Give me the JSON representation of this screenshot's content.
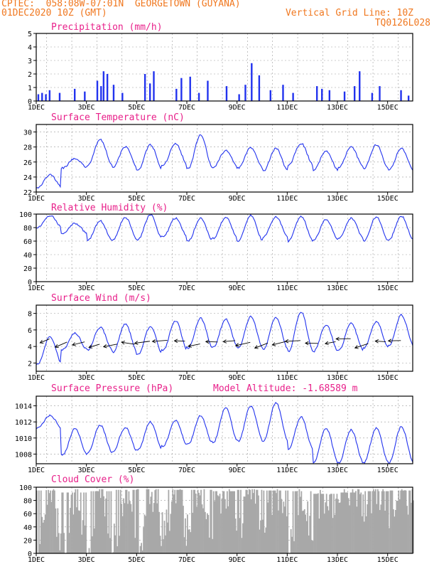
{
  "header": {
    "line1": "CPTEC:  058:08W-07:01N  GEORGETOWN (GUYANA)",
    "line2": "01DEC2020 10Z (GMT)",
    "grid_note": "Vertical Grid Line: 10Z",
    "run_code": "TQ0126L028"
  },
  "colors": {
    "header": "#f07820",
    "panel_title": "#e8208a",
    "series": "#2233ee",
    "cloud": "#a8a8a8",
    "frame": "#000000"
  },
  "x_axis": {
    "tick_labels": [
      "1DEC",
      "3DEC",
      "5DEC",
      "7DEC",
      "9DEC",
      "11DEC",
      "13DEC",
      "15DEC"
    ],
    "start_day": 1,
    "end_day": 16,
    "grid": "dashed vertical lines at 10Z each day"
  },
  "chart_data": [
    {
      "type": "bar",
      "title": "Precipitation (mm/h)",
      "ylim": [
        0,
        5
      ],
      "yticks": [
        "0",
        "1",
        "2",
        "3",
        "4",
        "5"
      ],
      "events": [
        {
          "day": 1.05,
          "value": 0.5
        },
        {
          "day": 1.2,
          "value": 0.6
        },
        {
          "day": 1.35,
          "value": 0.5
        },
        {
          "day": 1.5,
          "value": 0.8
        },
        {
          "day": 1.9,
          "value": 0.6
        },
        {
          "day": 2.5,
          "value": 0.9
        },
        {
          "day": 2.9,
          "value": 0.7
        },
        {
          "day": 3.4,
          "value": 1.5
        },
        {
          "day": 3.55,
          "value": 1.1
        },
        {
          "day": 3.65,
          "value": 2.2
        },
        {
          "day": 3.8,
          "value": 2.0
        },
        {
          "day": 4.05,
          "value": 1.2
        },
        {
          "day": 4.4,
          "value": 0.6
        },
        {
          "day": 5.3,
          "value": 2.0
        },
        {
          "day": 5.5,
          "value": 1.3
        },
        {
          "day": 5.65,
          "value": 2.2
        },
        {
          "day": 6.55,
          "value": 0.9
        },
        {
          "day": 6.75,
          "value": 1.7
        },
        {
          "day": 7.1,
          "value": 1.8
        },
        {
          "day": 7.45,
          "value": 0.6
        },
        {
          "day": 7.8,
          "value": 1.5
        },
        {
          "day": 8.55,
          "value": 1.1
        },
        {
          "day": 9.05,
          "value": 0.5
        },
        {
          "day": 9.3,
          "value": 1.2
        },
        {
          "day": 9.55,
          "value": 2.8
        },
        {
          "day": 9.85,
          "value": 1.9
        },
        {
          "day": 10.3,
          "value": 0.8
        },
        {
          "day": 10.8,
          "value": 1.2
        },
        {
          "day": 11.2,
          "value": 0.6
        },
        {
          "day": 12.15,
          "value": 1.1
        },
        {
          "day": 12.35,
          "value": 0.9
        },
        {
          "day": 12.65,
          "value": 0.8
        },
        {
          "day": 13.25,
          "value": 0.7
        },
        {
          "day": 13.65,
          "value": 1.1
        },
        {
          "day": 13.85,
          "value": 2.2
        },
        {
          "day": 14.35,
          "value": 0.6
        },
        {
          "day": 14.65,
          "value": 1.1
        },
        {
          "day": 15.5,
          "value": 0.8
        },
        {
          "day": 15.8,
          "value": 0.4
        }
      ]
    },
    {
      "type": "line",
      "title": "Surface Temperature (nC)",
      "ylim": [
        22,
        31
      ],
      "yticks": [
        "22",
        "24",
        "26",
        "28",
        "30"
      ],
      "daily_max": [
        24.3,
        26.5,
        29.0,
        28.0,
        28.3,
        28.4,
        29.6,
        27.5,
        27.9,
        27.8,
        28.5,
        27.5,
        28.0,
        28.3,
        27.8,
        28.5
      ],
      "daily_min": [
        22.6,
        25.2,
        25.6,
        25.3,
        24.9,
        25.6,
        25.1,
        25.3,
        25.2,
        24.8,
        25.6,
        24.9,
        25.3,
        25.1,
        24.9,
        25.0
      ]
    },
    {
      "type": "line",
      "title": "Relative Humidity (%)",
      "ylim": [
        0,
        100
      ],
      "yticks": [
        "0",
        "20",
        "40",
        "60",
        "80",
        "100"
      ],
      "daily_max": [
        98,
        86,
        90,
        95,
        99,
        94,
        94,
        95,
        98,
        96,
        97,
        92,
        94,
        96,
        97,
        98
      ],
      "daily_min": [
        80,
        72,
        61,
        62,
        62,
        66,
        60,
        64,
        60,
        66,
        60,
        62,
        64,
        60,
        62,
        62
      ]
    },
    {
      "type": "line",
      "title": "Surface Wind (m/s)",
      "ylim": [
        1,
        9
      ],
      "yticks": [
        "2",
        "4",
        "6",
        "8"
      ],
      "daily_max": [
        5.2,
        5.6,
        6.3,
        6.7,
        6.4,
        7.1,
        7.4,
        7.3,
        7.6,
        7.5,
        8.2,
        6.6,
        6.8,
        7.0,
        7.8,
        6.3
      ],
      "daily_min": [
        1.8,
        3.6,
        3.6,
        3.3,
        3.0,
        3.5,
        3.8,
        3.9,
        3.8,
        3.6,
        3.4,
        3.4,
        3.5,
        3.8,
        4.1,
        4.2
      ],
      "vector_days": [
        1.3,
        2.0,
        2.7,
        3.3,
        4.0,
        4.7,
        5.3,
        6.0,
        6.7,
        7.3,
        8.0,
        8.7,
        9.3,
        10.0,
        10.7,
        11.3,
        12.0,
        12.7,
        13.3,
        14.0,
        14.7,
        15.3
      ]
    },
    {
      "type": "line",
      "title": "Surface Pressure (hPa)",
      "annotation": "Model Altitude: -1.68589  m",
      "ylim": [
        1006.8,
        1015.2
      ],
      "yticks": [
        "1008",
        "1010",
        "1012",
        "1014"
      ],
      "daily_max": [
        1012.8,
        1011.2,
        1011.6,
        1011.3,
        1012.0,
        1012.2,
        1012.8,
        1013.8,
        1014.0,
        1014.4,
        1012.6,
        1011.2,
        1011.0,
        1011.2,
        1011.4,
        1011.6
      ],
      "daily_min": [
        1011.2,
        1007.9,
        1008.2,
        1008.3,
        1008.5,
        1009.0,
        1009.2,
        1009.4,
        1009.6,
        1009.6,
        1008.6,
        1006.9,
        1006.9,
        1006.9,
        1006.9,
        1007.0
      ]
    },
    {
      "type": "area",
      "title": "Cloud Cover (%)",
      "ylim": [
        0,
        100
      ],
      "yticks": [
        "0",
        "20",
        "40",
        "60",
        "80",
        "100"
      ],
      "daily_max": [
        95,
        92,
        94,
        96,
        97,
        96,
        96,
        94,
        96,
        95,
        94,
        90,
        92,
        94,
        95,
        93
      ],
      "daily_min": [
        6,
        15,
        8,
        20,
        15,
        35,
        28,
        50,
        40,
        45,
        18,
        55,
        60,
        65,
        68,
        72
      ]
    }
  ]
}
